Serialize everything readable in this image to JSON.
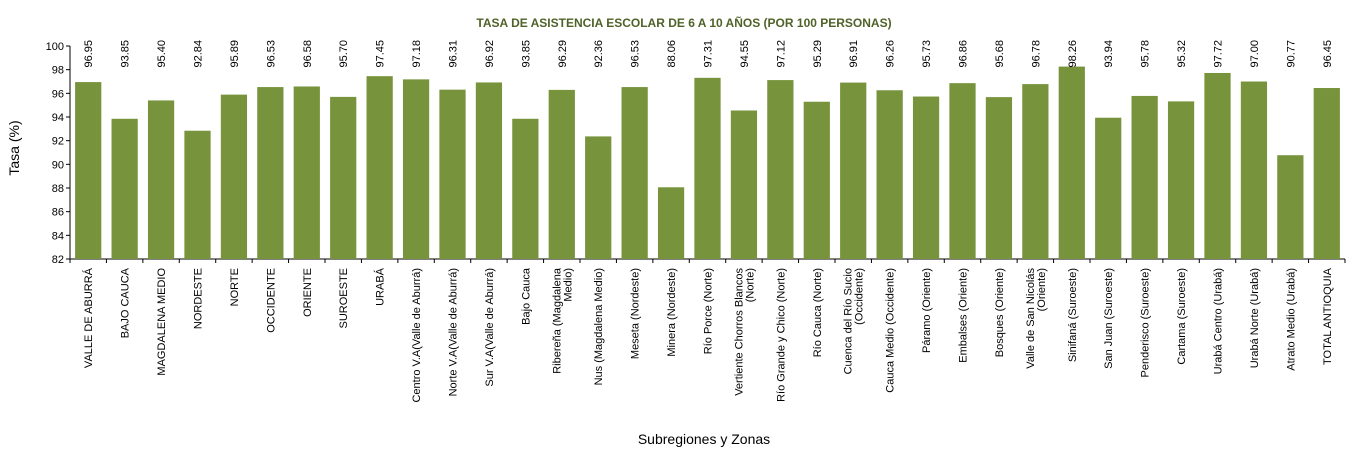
{
  "chart_data": {
    "type": "bar",
    "title": "TASA DE ASISTENCIA ESCOLAR DE 6 A 10 AÑOS (POR 100 PERSONAS)",
    "xlabel": "Subregiones y Zonas",
    "ylabel": "Tasa (%)",
    "ylim": [
      82,
      100
    ],
    "yticks": [
      82,
      84,
      86,
      88,
      90,
      92,
      94,
      96,
      98,
      100
    ],
    "bar_color": "#77933C",
    "title_color": "#4F6228",
    "grid": false,
    "legend": "none",
    "categories": [
      [
        "VALLE DE ABURRÁ"
      ],
      [
        "BAJO CAUCA"
      ],
      [
        "MAGDALENA MEDIO"
      ],
      [
        "NORDESTE"
      ],
      [
        "NORTE"
      ],
      [
        "OCCIDENTE"
      ],
      [
        "ORIENTE"
      ],
      [
        "SUROESTE"
      ],
      [
        "URABÁ"
      ],
      [
        "Centro V.A(Valle de Aburrá)"
      ],
      [
        "Norte V.A(Valle de Aburrá)"
      ],
      [
        "Sur V.A(Valle de Aburrá)"
      ],
      [
        "Bajo Cauca"
      ],
      [
        "Ribereña  (Magdalena",
        "Medio)"
      ],
      [
        "Nus  (Magdalena Medio)"
      ],
      [
        "Meseta  (Nordeste)"
      ],
      [
        "Minera  (Nordeste)"
      ],
      [
        "Río Porce   (Norte)"
      ],
      [
        "Vertiente Chorros Blancos",
        "(Norte)"
      ],
      [
        "Río Grande y Chico  (Norte)"
      ],
      [
        "Río Cauca  (Norte)"
      ],
      [
        "Cuenca del Río Sucio",
        "(Occidente)"
      ],
      [
        "Cauca Medio  (Occidente)"
      ],
      [
        "Páramo  (Oriente)"
      ],
      [
        "Embalses  (Oriente)"
      ],
      [
        "Bosques  (Oriente)"
      ],
      [
        "Valle de San Nicolás",
        "(Oriente)"
      ],
      [
        "Sinifaná  (Suroeste)"
      ],
      [
        "San Juan  (Suroeste)"
      ],
      [
        "Penderisco  (Suroeste)"
      ],
      [
        "Cartama  (Suroeste)"
      ],
      [
        "Urabá Centro  (Urabá)"
      ],
      [
        "Urabá Norte  (Urabá)"
      ],
      [
        "Atrato Medio  (Urabá)"
      ],
      [
        "TOTAL ANTIOQUIA"
      ]
    ],
    "values": [
      96.95,
      93.85,
      95.4,
      92.84,
      95.89,
      96.53,
      96.58,
      95.7,
      97.45,
      97.18,
      96.31,
      96.92,
      93.85,
      96.29,
      92.36,
      96.53,
      88.06,
      97.31,
      94.55,
      97.12,
      95.29,
      96.91,
      96.26,
      95.73,
      96.86,
      95.68,
      96.78,
      98.26,
      93.94,
      95.78,
      95.32,
      97.72,
      97.0,
      90.77,
      96.45
    ],
    "value_labels": [
      "96.95",
      "93.85",
      "95.40",
      "92.84",
      "95.89",
      "96.53",
      "96.58",
      "95.70",
      "97.45",
      "97.18",
      "96.31",
      "96.92",
      "93.85",
      "96.29",
      "92.36",
      "96.53",
      "88.06",
      "97.31",
      "94.55",
      "97.12",
      "95.29",
      "96.91",
      "96.26",
      "95.73",
      "96.86",
      "95.68",
      "96.78",
      "98.26",
      "93.94",
      "95.78",
      "95.32",
      "97.72",
      "97.00",
      "90.77",
      "96.45"
    ]
  }
}
